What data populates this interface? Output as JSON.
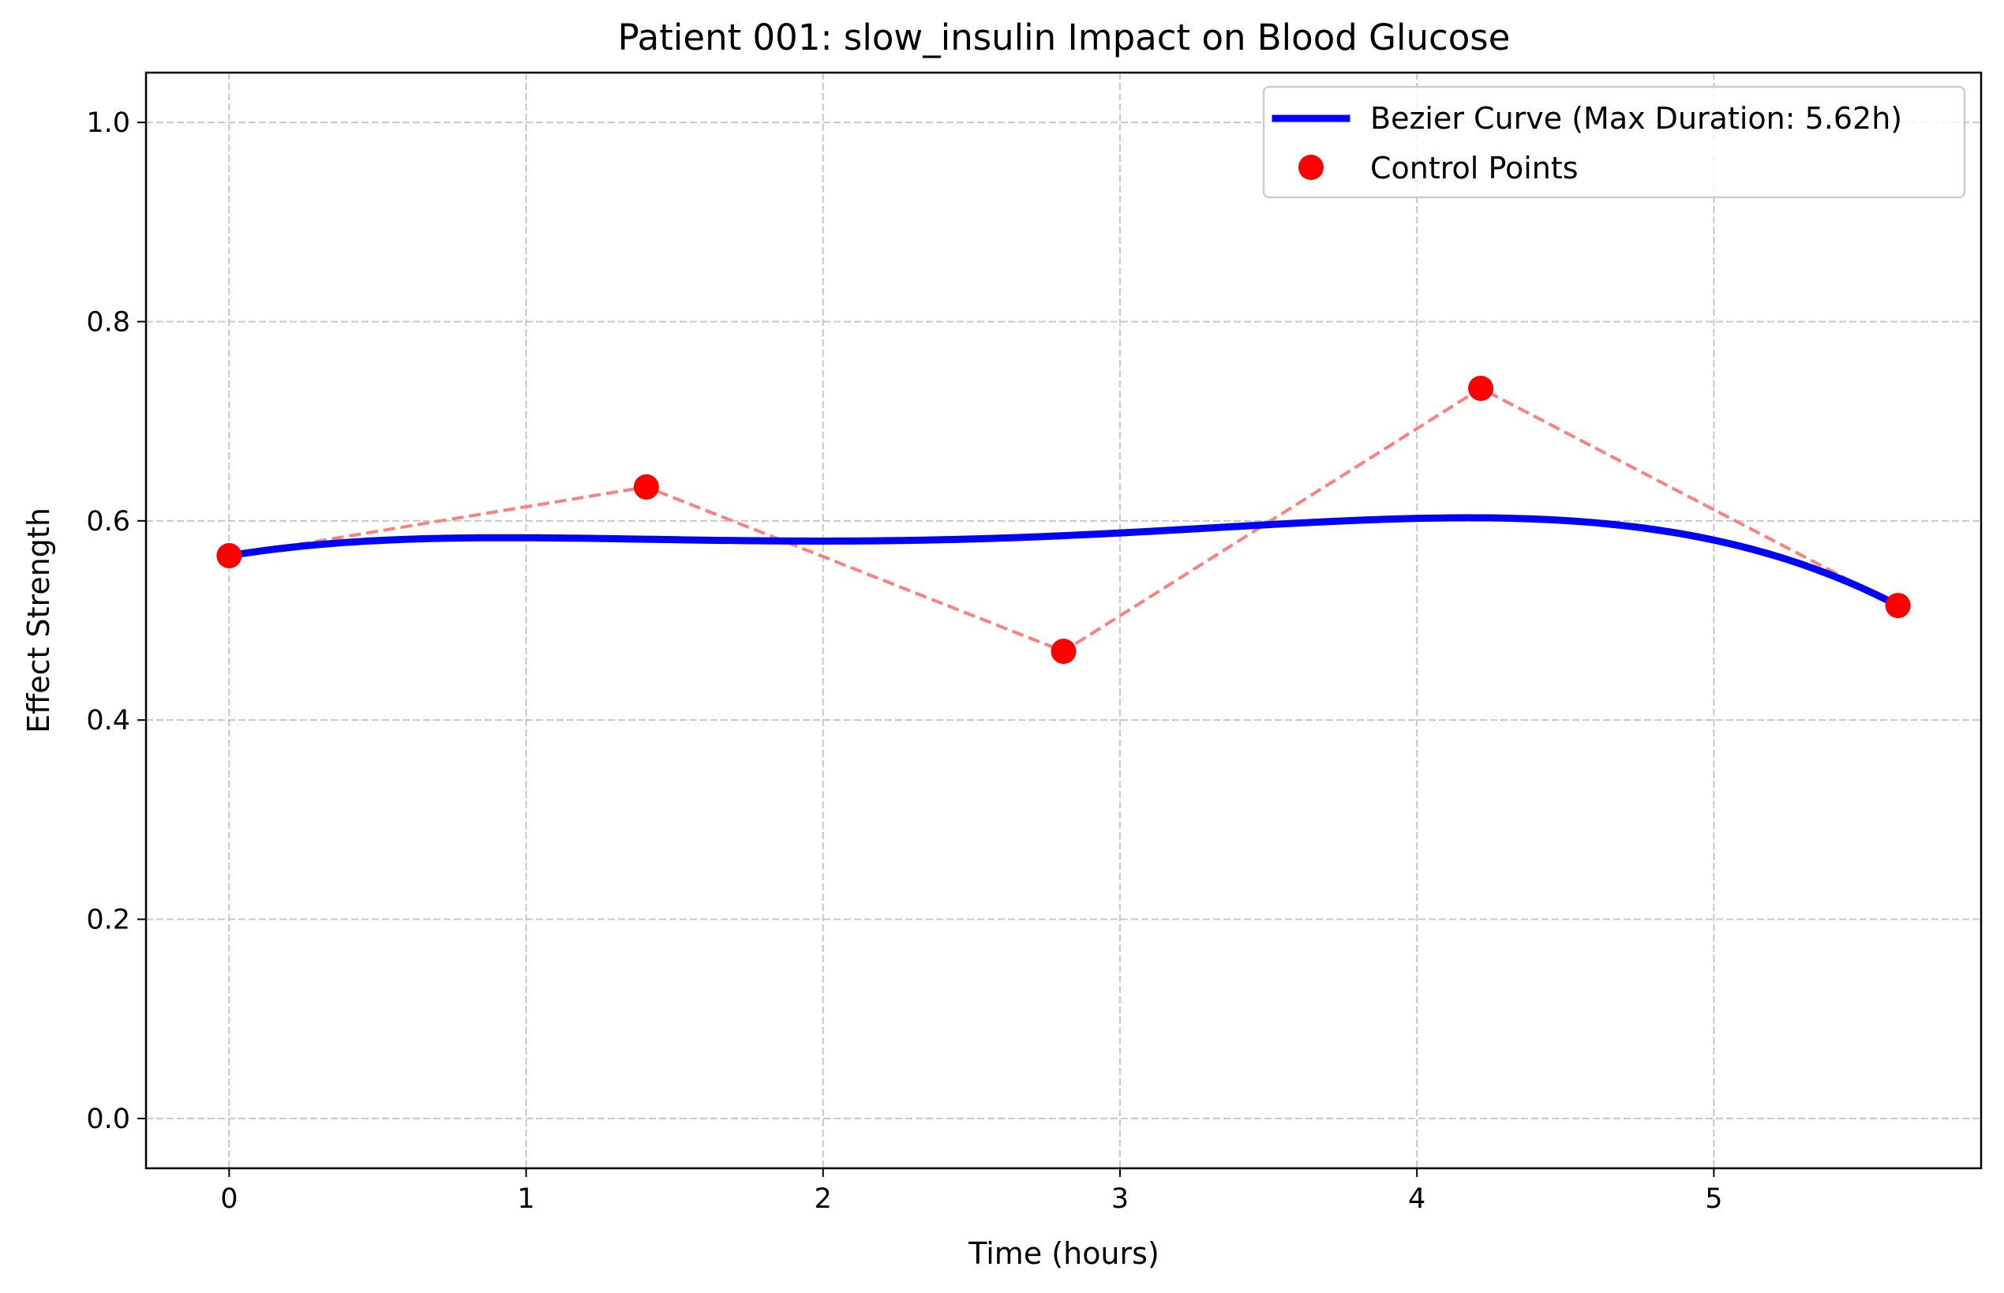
{
  "chart_data": {
    "type": "line",
    "title": "Patient 001: slow_insulin Impact on Blood Glucose",
    "xlabel": "Time (hours)",
    "ylabel": "Effect Strength",
    "xlim": [
      -0.28,
      5.9
    ],
    "ylim": [
      -0.05,
      1.05
    ],
    "x_ticks": [
      0,
      1,
      2,
      3,
      4,
      5
    ],
    "x_tick_labels": [
      "0",
      "1",
      "2",
      "3",
      "4",
      "5"
    ],
    "y_ticks": [
      0.0,
      0.2,
      0.4,
      0.6,
      0.8,
      1.0
    ],
    "y_tick_labels": [
      "0.0",
      "0.2",
      "0.4",
      "0.6",
      "0.8",
      "1.0"
    ],
    "grid": true,
    "legend_position": "top-right",
    "series": [
      {
        "name": "Bezier Curve (Max Duration: 5.62h)",
        "kind": "bezier-curve",
        "color": "#0000ff"
      },
      {
        "name": "Control Points",
        "kind": "points",
        "color": "#ff0000",
        "x": [
          0.0,
          1.405,
          2.81,
          4.215,
          5.62
        ],
        "y": [
          0.565,
          0.634,
          0.469,
          0.733,
          0.515
        ]
      }
    ],
    "control_polygon": {
      "color": "#ff7f7f",
      "style": "dashed"
    }
  }
}
